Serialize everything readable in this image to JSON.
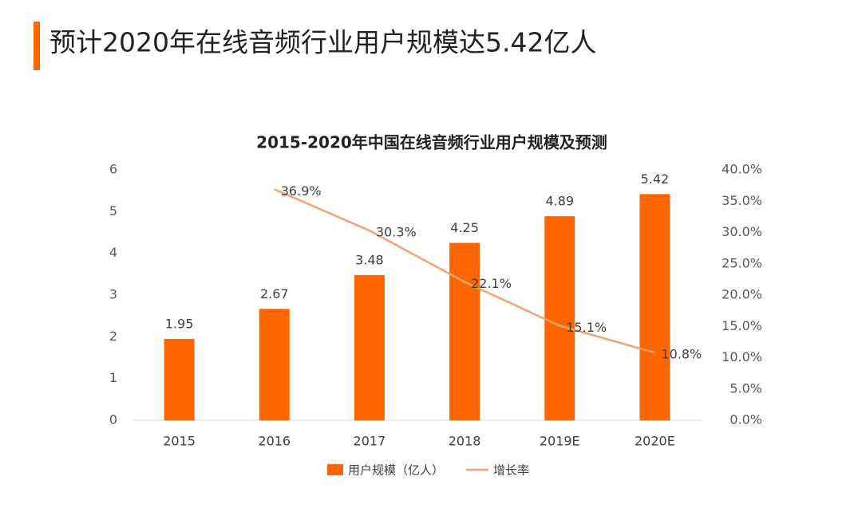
{
  "header": {
    "title": "预计2020年在线音频行业用户规模达5.42亿人"
  },
  "chart_data": {
    "type": "combo",
    "title": "2015-2020年中国在线音频行业用户规模及预测",
    "categories": [
      "2015",
      "2016",
      "2017",
      "2018",
      "2019E",
      "2020E"
    ],
    "series": [
      {
        "name": "用户规模（亿人）",
        "type": "bar",
        "color": "#ff6600",
        "values": [
          1.95,
          2.67,
          3.48,
          4.25,
          4.89,
          5.42
        ]
      },
      {
        "name": "增长率",
        "type": "line",
        "axis": "y2",
        "color": "#f5a36c",
        "values": [
          null,
          36.9,
          30.3,
          22.1,
          15.1,
          10.8
        ],
        "value_labels": [
          null,
          "36.9%",
          "30.3%",
          "22.1%",
          "15.1%",
          "10.8%"
        ]
      }
    ],
    "ylim": [
      0,
      6
    ],
    "yticks": [
      0,
      1,
      2,
      3,
      4,
      5,
      6
    ],
    "y2lim": [
      0,
      40
    ],
    "y2ticks": [
      {
        "value": 0,
        "label": "0.0%"
      },
      {
        "value": 5,
        "label": "5.0%"
      },
      {
        "value": 10,
        "label": "10.0%"
      },
      {
        "value": 15,
        "label": "15.0%"
      },
      {
        "value": 20,
        "label": "20.0%"
      },
      {
        "value": 25,
        "label": "25.0%"
      },
      {
        "value": 30,
        "label": "30.0%"
      },
      {
        "value": 35,
        "label": "35.0%"
      },
      {
        "value": 40,
        "label": "40.0%"
      }
    ],
    "grid": false,
    "legend": "bottom"
  }
}
